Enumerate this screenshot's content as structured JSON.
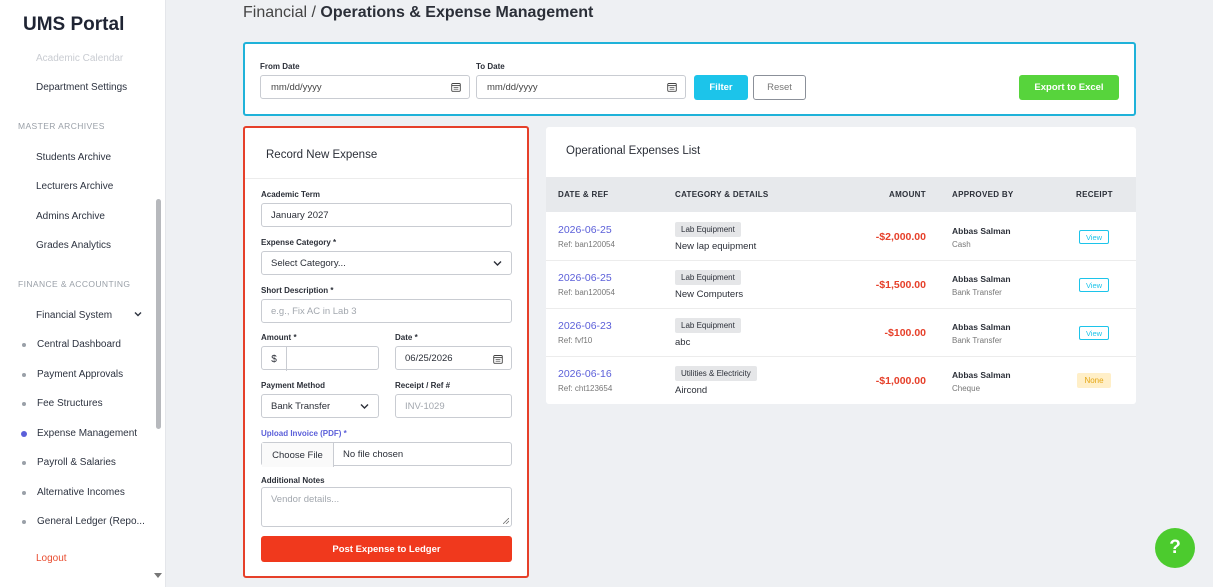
{
  "sidebar": {
    "brand": "UMS Portal",
    "faded_item": "Academic Calendar",
    "department_settings": "Department Settings",
    "section_master": "MASTER ARCHIVES",
    "master_items": [
      "Students Archive",
      "Lecturers Archive",
      "Admins Archive",
      "Grades Analytics"
    ],
    "section_finance": "FINANCE & ACCOUNTING",
    "financial_system": "Financial System",
    "finance_items": [
      "Central Dashboard",
      "Payment Approvals",
      "Fee Structures",
      "Expense Management",
      "Payroll & Salaries",
      "Alternative Incomes",
      "General Ledger (Repo..."
    ],
    "active_item": "Expense Management",
    "logout": "Logout"
  },
  "header": {
    "crumb_parent": "Financial /",
    "crumb_current": "Operations & Expense Management"
  },
  "filter": {
    "from_label": "From Date",
    "from_placeholder": "mm/dd/yyyy",
    "to_label": "To Date",
    "to_placeholder": "mm/dd/yyyy",
    "filter_button": "Filter",
    "reset_button": "Reset",
    "export_button": "Export to Excel"
  },
  "form": {
    "title": "Record New Expense",
    "term_label": "Academic Term",
    "term_value": "January 2027",
    "category_label": "Expense Category *",
    "category_value": "Select Category...",
    "description_label": "Short Description *",
    "description_placeholder": "e.g., Fix AC in Lab 3",
    "amount_label": "Amount *",
    "currency": "$",
    "date_label": "Date *",
    "date_value": "06/25/2026",
    "method_label": "Payment Method",
    "method_value": "Bank Transfer",
    "receipt_label": "Receipt / Ref #",
    "receipt_placeholder": "INV-1029",
    "upload_label": "Upload Invoice (PDF) *",
    "choose_file": "Choose File",
    "no_file": "No file chosen",
    "notes_label": "Additional Notes",
    "notes_placeholder": "Vendor details...",
    "submit": "Post Expense to Ledger"
  },
  "list": {
    "title": "Operational Expenses List",
    "columns": {
      "date_ref": "DATE & REF",
      "category": "CATEGORY & DETAILS",
      "amount": "AMOUNT",
      "approved": "APPROVED BY",
      "receipt": "RECEIPT"
    },
    "rows": [
      {
        "date": "2026-06-25",
        "ref": "Ref: ban120054",
        "category": "Lab Equipment",
        "detail": "New lap equipment",
        "amount": "-$2,000.00",
        "approver": "Abbas Salman",
        "method": "Cash",
        "receipt": "View"
      },
      {
        "date": "2026-06-25",
        "ref": "Ref: ban120054",
        "category": "Lab Equipment",
        "detail": "New Computers",
        "amount": "-$1,500.00",
        "approver": "Abbas Salman",
        "method": "Bank Transfer",
        "receipt": "View"
      },
      {
        "date": "2026-06-23",
        "ref": "Ref: fvf10",
        "category": "Lab Equipment",
        "detail": "abc",
        "amount": "-$100.00",
        "approver": "Abbas Salman",
        "method": "Bank Transfer",
        "receipt": "View"
      },
      {
        "date": "2026-06-16",
        "ref": "Ref: cht123654",
        "category": "Utilities & Electricity",
        "detail": "Aircond",
        "amount": "-$1,000.00",
        "approver": "Abbas Salman",
        "method": "Cheque",
        "receipt": "None"
      }
    ]
  },
  "help": "?"
}
